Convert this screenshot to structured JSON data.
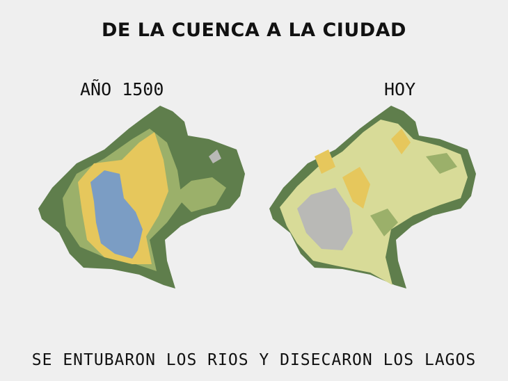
{
  "title": "DE LA CUENCA A LA CIUDAD",
  "maps": [
    {
      "label": "AÑO 1500"
    },
    {
      "label": "HOY"
    }
  ],
  "caption": "SE ENTUBARON LOS RIOS Y DISECARON LOS LAGOS"
}
